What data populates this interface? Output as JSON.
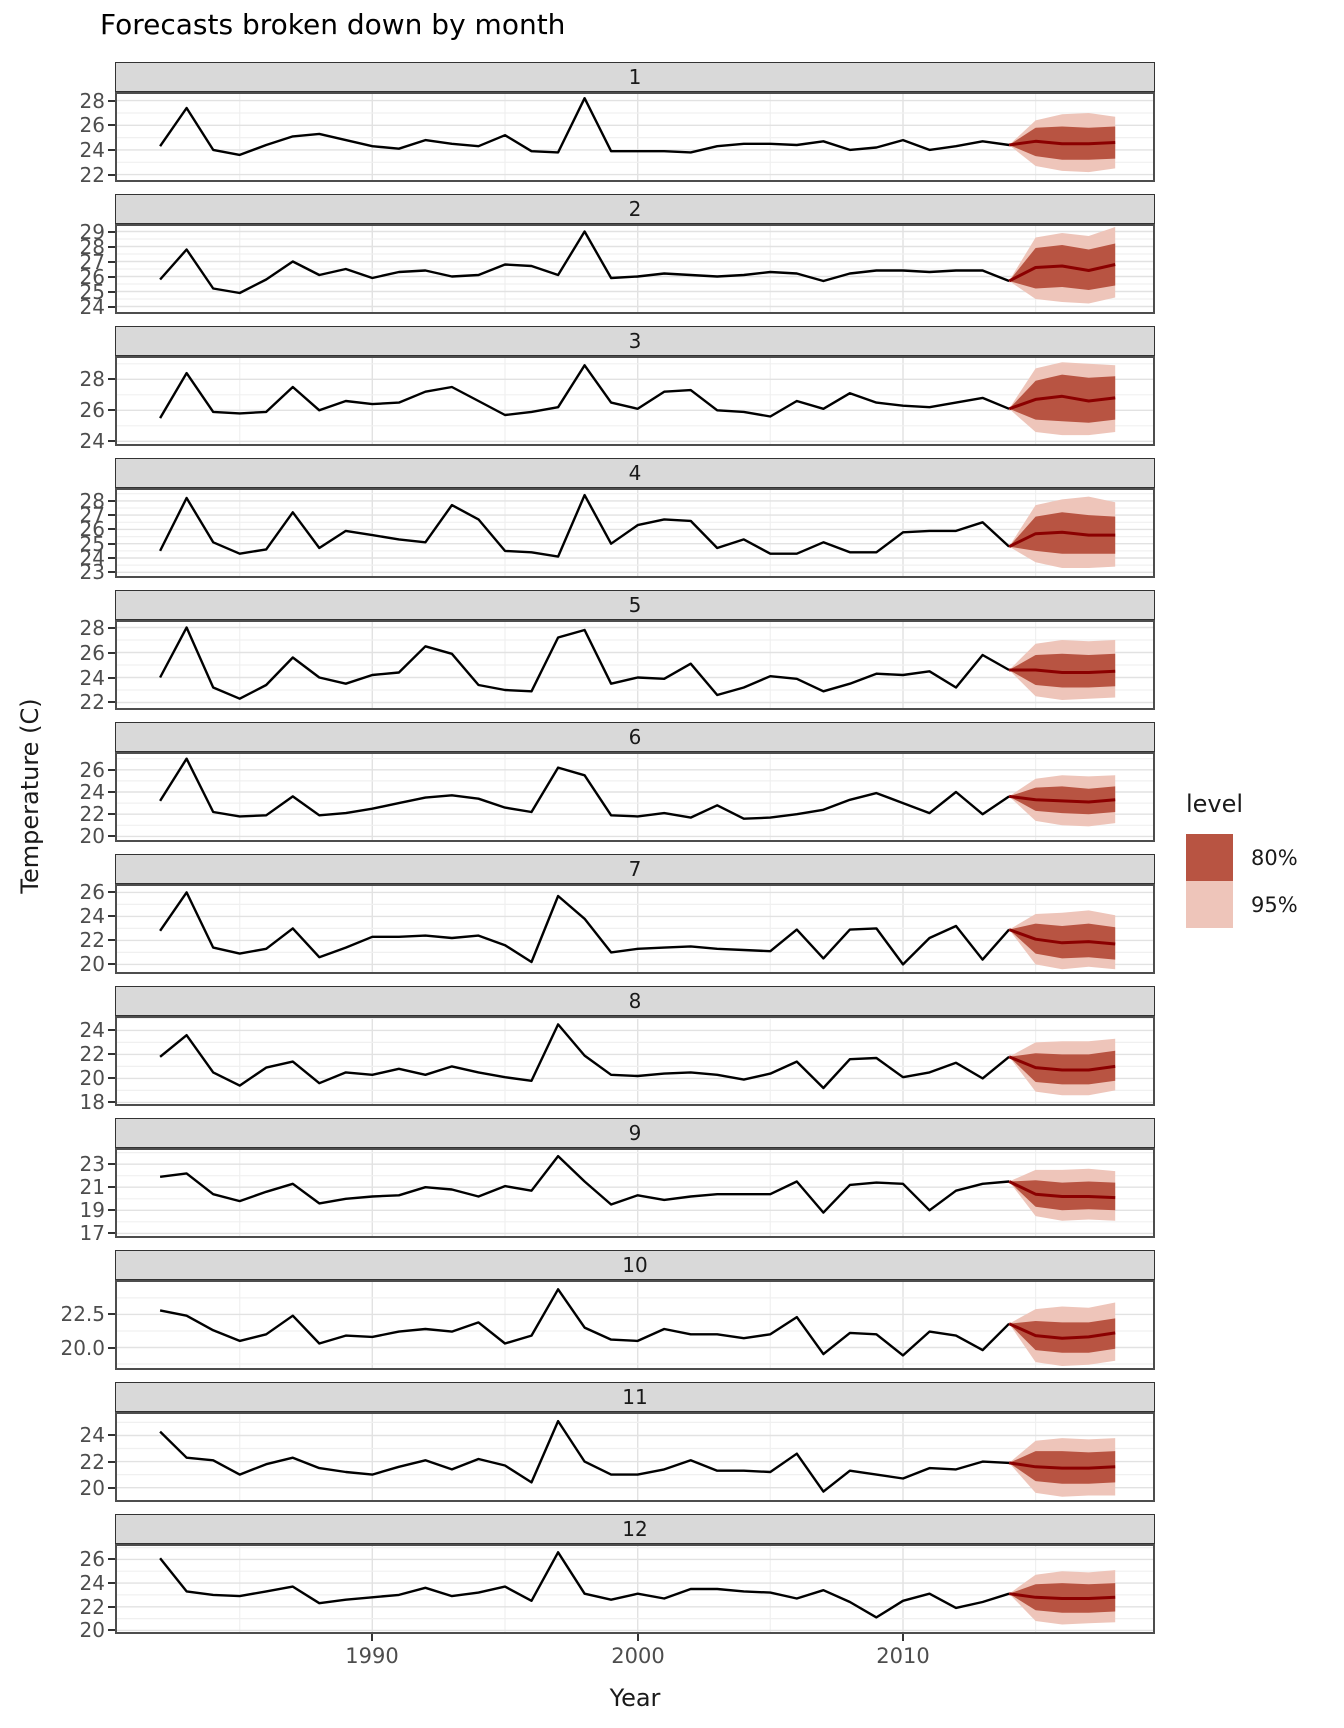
{
  "title": "Forecasts broken down by month",
  "axes": {
    "x_title": "Year",
    "y_title": "Temperature (C)",
    "x_major_ticks": [
      1990,
      2000,
      2010
    ],
    "x_major_labels": [
      "1990",
      "2000",
      "2010"
    ],
    "x_minor_ticks": [
      1985,
      1995,
      2005,
      2015
    ]
  },
  "legend": {
    "title": "level",
    "entries": [
      {
        "label": "80%",
        "color": "#b85442"
      },
      {
        "label": "95%",
        "color": "#eec5ba"
      }
    ]
  },
  "style": {
    "history_color": "#000000",
    "forecast_mean_color": "#8b0000",
    "level_80_color": "#b85442",
    "level_95_color": "#eec5ba",
    "grid_major": "#e2e2e2",
    "grid_minor": "#f0f0f0",
    "panel_border": "#4d4d4d",
    "strip_bg": "#d9d9d9"
  },
  "chart_data": {
    "type": "line",
    "title": "Forecasts broken down by month",
    "xlabel": "Year",
    "ylabel": "Temperature (C)",
    "x_range": [
      1980.3,
      2019.5
    ],
    "x_years": [
      1982,
      1983,
      1984,
      1985,
      1986,
      1987,
      1988,
      1989,
      1990,
      1991,
      1992,
      1993,
      1994,
      1995,
      1996,
      1997,
      1998,
      1999,
      2000,
      2001,
      2002,
      2003,
      2004,
      2005,
      2006,
      2007,
      2008,
      2009,
      2010,
      2011,
      2012,
      2013,
      2014
    ],
    "forecast_years": [
      2014,
      2015,
      2016,
      2017,
      2018
    ],
    "panels": [
      {
        "label": "1",
        "y_tick_values": [
          22,
          24,
          26,
          28
        ],
        "y_tick_labels": [
          "22",
          "24",
          "26",
          "28"
        ],
        "y_range": [
          21.4,
          28.7
        ],
        "history": [
          24.3,
          27.4,
          24.0,
          23.6,
          24.4,
          25.1,
          25.3,
          24.8,
          24.3,
          24.1,
          24.8,
          24.5,
          24.3,
          25.2,
          23.9,
          23.8,
          28.2,
          23.9,
          23.9,
          23.9,
          23.8,
          24.3,
          24.5,
          24.5,
          24.4,
          24.7,
          24.0,
          24.2,
          24.8,
          24.0,
          24.3,
          24.7,
          24.4
        ],
        "forecast": {
          "mean": [
            24.4,
            24.7,
            24.5,
            24.5,
            24.6
          ],
          "lo80": [
            24.4,
            23.5,
            23.2,
            23.2,
            23.3
          ],
          "hi80": [
            24.4,
            25.8,
            25.9,
            25.8,
            25.9
          ],
          "lo95": [
            24.4,
            22.7,
            22.3,
            22.2,
            22.5
          ],
          "hi95": [
            24.4,
            26.4,
            26.9,
            27.0,
            26.7
          ]
        }
      },
      {
        "label": "2",
        "y_tick_values": [
          24,
          25,
          26,
          27,
          28,
          29
        ],
        "y_tick_labels": [
          "24",
          "25",
          "26",
          "27",
          "28",
          "29"
        ],
        "y_range": [
          23.5,
          29.5
        ],
        "history": [
          25.8,
          27.8,
          25.2,
          24.9,
          25.8,
          27.0,
          26.1,
          26.5,
          25.9,
          26.3,
          26.4,
          26.0,
          26.1,
          26.8,
          26.7,
          26.1,
          29.0,
          25.9,
          26.0,
          26.2,
          26.1,
          26.0,
          26.1,
          26.3,
          26.2,
          25.7,
          26.2,
          26.4,
          26.4,
          26.3,
          26.4,
          26.4,
          25.7
        ],
        "forecast": {
          "mean": [
            25.7,
            26.6,
            26.7,
            26.4,
            26.8
          ],
          "lo80": [
            25.7,
            25.2,
            25.3,
            25.1,
            25.4
          ],
          "hi80": [
            25.7,
            27.9,
            28.1,
            27.8,
            28.2
          ],
          "lo95": [
            25.7,
            24.5,
            24.3,
            24.2,
            24.6
          ],
          "hi95": [
            25.7,
            28.6,
            28.9,
            28.7,
            29.3
          ]
        }
      },
      {
        "label": "3",
        "y_tick_values": [
          24,
          26,
          28
        ],
        "y_tick_labels": [
          "24",
          "26",
          "28"
        ],
        "y_range": [
          23.7,
          29.5
        ],
        "history": [
          25.5,
          28.4,
          25.9,
          25.8,
          25.9,
          27.5,
          26.0,
          26.6,
          26.4,
          26.5,
          27.2,
          27.5,
          26.6,
          25.7,
          25.9,
          26.2,
          28.9,
          26.5,
          26.1,
          27.2,
          27.3,
          26.0,
          25.9,
          25.6,
          26.6,
          26.1,
          27.1,
          26.5,
          26.3,
          26.2,
          26.5,
          26.8,
          26.1
        ],
        "forecast": {
          "mean": [
            26.1,
            26.7,
            26.9,
            26.6,
            26.8
          ],
          "lo80": [
            26.1,
            25.4,
            25.3,
            25.2,
            25.4
          ],
          "hi80": [
            26.1,
            27.9,
            28.3,
            28.1,
            28.2
          ],
          "lo95": [
            26.1,
            24.6,
            24.4,
            24.4,
            24.6
          ],
          "hi95": [
            26.1,
            28.7,
            29.1,
            29.0,
            28.9
          ]
        }
      },
      {
        "label": "4",
        "y_tick_values": [
          23,
          24,
          25,
          26,
          27,
          28
        ],
        "y_tick_labels": [
          "23",
          "24",
          "25",
          "26",
          "27",
          "28"
        ],
        "y_range": [
          22.6,
          28.9
        ],
        "history": [
          24.5,
          28.2,
          25.1,
          24.3,
          24.6,
          27.2,
          24.7,
          25.9,
          25.6,
          25.3,
          25.1,
          27.7,
          26.7,
          24.5,
          24.4,
          24.1,
          28.4,
          25.0,
          26.3,
          26.7,
          26.6,
          24.7,
          25.3,
          24.3,
          24.3,
          25.1,
          24.4,
          24.4,
          25.8,
          25.9,
          25.9,
          26.5,
          24.8
        ],
        "forecast": {
          "mean": [
            24.8,
            25.7,
            25.8,
            25.6,
            25.6
          ],
          "lo80": [
            24.8,
            24.5,
            24.3,
            24.3,
            24.3
          ],
          "hi80": [
            24.8,
            26.9,
            27.2,
            27.0,
            26.9
          ],
          "lo95": [
            24.8,
            23.7,
            23.3,
            23.3,
            23.4
          ],
          "hi95": [
            24.8,
            27.7,
            28.1,
            28.3,
            27.9
          ]
        }
      },
      {
        "label": "5",
        "y_tick_values": [
          22,
          24,
          26,
          28
        ],
        "y_tick_labels": [
          "22",
          "24",
          "26",
          "28"
        ],
        "y_range": [
          21.4,
          28.6
        ],
        "history": [
          24.0,
          28.0,
          23.2,
          22.3,
          23.4,
          25.6,
          24.0,
          23.5,
          24.2,
          24.4,
          26.5,
          25.9,
          23.4,
          23.0,
          22.9,
          27.2,
          27.8,
          23.5,
          24.0,
          23.9,
          25.1,
          22.6,
          23.2,
          24.1,
          23.9,
          22.9,
          23.5,
          24.3,
          24.2,
          24.5,
          23.2,
          25.8,
          24.6
        ],
        "forecast": {
          "mean": [
            24.6,
            24.6,
            24.4,
            24.4,
            24.5
          ],
          "lo80": [
            24.6,
            23.4,
            23.2,
            23.2,
            23.3
          ],
          "hi80": [
            24.6,
            25.8,
            25.9,
            25.8,
            25.9
          ],
          "lo95": [
            24.6,
            22.5,
            22.2,
            22.3,
            22.4
          ],
          "hi95": [
            24.6,
            26.7,
            27.0,
            26.9,
            27.0
          ]
        }
      },
      {
        "label": "6",
        "y_tick_values": [
          20,
          22,
          24,
          26
        ],
        "y_tick_labels": [
          "20",
          "22",
          "24",
          "26"
        ],
        "y_range": [
          19.5,
          27.6
        ],
        "history": [
          23.2,
          27.0,
          22.2,
          21.8,
          21.9,
          23.6,
          21.9,
          22.1,
          22.5,
          23.0,
          23.5,
          23.7,
          23.4,
          22.6,
          22.2,
          26.2,
          25.5,
          21.9,
          21.8,
          22.1,
          21.7,
          22.8,
          21.6,
          21.7,
          22.0,
          22.4,
          23.3,
          23.9,
          23.0,
          22.1,
          24.0,
          22.0,
          23.6
        ],
        "forecast": {
          "mean": [
            23.6,
            23.3,
            23.2,
            23.1,
            23.3
          ],
          "lo80": [
            23.6,
            22.3,
            22.1,
            22.0,
            22.2
          ],
          "hi80": [
            23.6,
            24.4,
            24.5,
            24.3,
            24.5
          ],
          "lo95": [
            23.6,
            21.4,
            21.0,
            20.9,
            21.2
          ],
          "hi95": [
            23.6,
            25.2,
            25.5,
            25.4,
            25.5
          ]
        }
      },
      {
        "label": "7",
        "y_tick_values": [
          20,
          22,
          24,
          26
        ],
        "y_tick_labels": [
          "20",
          "22",
          "24",
          "26"
        ],
        "y_range": [
          19.2,
          26.7
        ],
        "history": [
          22.8,
          26.0,
          21.4,
          20.9,
          21.3,
          23.0,
          20.6,
          21.4,
          22.3,
          22.3,
          22.4,
          22.2,
          22.4,
          21.6,
          20.2,
          25.7,
          23.8,
          21.0,
          21.3,
          21.4,
          21.5,
          21.3,
          21.2,
          21.1,
          22.9,
          20.5,
          22.9,
          23.0,
          20.0,
          22.2,
          23.2,
          20.4,
          22.9
        ],
        "forecast": {
          "mean": [
            22.9,
            22.1,
            21.8,
            21.9,
            21.7
          ],
          "lo80": [
            22.9,
            20.9,
            20.5,
            20.6,
            20.4
          ],
          "hi80": [
            22.9,
            23.4,
            23.2,
            23.4,
            23.1
          ],
          "lo95": [
            22.9,
            20.0,
            19.6,
            19.8,
            19.6
          ],
          "hi95": [
            22.9,
            24.2,
            24.3,
            24.5,
            24.1
          ]
        }
      },
      {
        "label": "8",
        "y_tick_values": [
          18,
          20,
          22,
          24
        ],
        "y_tick_labels": [
          "18",
          "20",
          "22",
          "24"
        ],
        "y_range": [
          17.7,
          25.2
        ],
        "history": [
          21.8,
          23.6,
          20.5,
          19.4,
          20.9,
          21.4,
          19.6,
          20.5,
          20.3,
          20.8,
          20.3,
          21.0,
          20.5,
          20.1,
          19.8,
          24.5,
          21.9,
          20.3,
          20.2,
          20.4,
          20.5,
          20.3,
          19.9,
          20.4,
          21.4,
          19.2,
          21.6,
          21.7,
          20.1,
          20.5,
          21.3,
          20.0,
          21.8
        ],
        "forecast": {
          "mean": [
            21.8,
            20.9,
            20.7,
            20.7,
            21.0
          ],
          "lo80": [
            21.8,
            19.7,
            19.5,
            19.5,
            19.8
          ],
          "hi80": [
            21.8,
            22.1,
            22.0,
            22.0,
            22.3
          ],
          "lo95": [
            21.8,
            18.9,
            18.6,
            18.6,
            19.0
          ],
          "hi95": [
            21.8,
            23.0,
            23.1,
            23.1,
            23.3
          ]
        }
      },
      {
        "label": "9",
        "y_tick_values": [
          17,
          19,
          21,
          23
        ],
        "y_tick_labels": [
          "17",
          "19",
          "21",
          "23"
        ],
        "y_range": [
          16.6,
          24.4
        ],
        "history": [
          21.9,
          22.2,
          20.4,
          19.8,
          20.6,
          21.3,
          19.6,
          20.0,
          20.2,
          20.3,
          21.0,
          20.8,
          20.2,
          21.1,
          20.7,
          23.7,
          21.5,
          19.5,
          20.3,
          19.9,
          20.2,
          20.4,
          20.4,
          20.4,
          21.5,
          18.8,
          21.2,
          21.4,
          21.3,
          19.0,
          20.7,
          21.3,
          21.5
        ],
        "forecast": {
          "mean": [
            21.5,
            20.4,
            20.2,
            20.2,
            20.1
          ],
          "lo80": [
            21.5,
            19.3,
            19.0,
            19.1,
            19.0
          ],
          "hi80": [
            21.5,
            21.6,
            21.4,
            21.5,
            21.4
          ],
          "lo95": [
            21.5,
            18.5,
            18.1,
            18.2,
            18.1
          ],
          "hi95": [
            21.5,
            22.5,
            22.5,
            22.6,
            22.4
          ]
        }
      },
      {
        "label": "10",
        "y_tick_values": [
          20.0,
          22.5
        ],
        "y_tick_labels": [
          "20.0",
          "22.5"
        ],
        "y_range": [
          18.3,
          25.1
        ],
        "history": [
          22.8,
          22.4,
          21.3,
          20.5,
          21.0,
          22.4,
          20.3,
          20.9,
          20.8,
          21.2,
          21.4,
          21.2,
          21.9,
          20.3,
          20.9,
          24.4,
          21.5,
          20.6,
          20.5,
          21.4,
          21.0,
          21.0,
          20.7,
          21.0,
          22.3,
          19.5,
          21.1,
          21.0,
          19.4,
          21.2,
          20.9,
          19.8,
          21.8
        ],
        "forecast": {
          "mean": [
            21.8,
            20.9,
            20.7,
            20.8,
            21.1
          ],
          "lo80": [
            21.8,
            19.8,
            19.6,
            19.6,
            19.9
          ],
          "hi80": [
            21.8,
            22.0,
            21.9,
            21.9,
            22.2
          ],
          "lo95": [
            21.8,
            18.9,
            18.6,
            18.7,
            19.0
          ],
          "hi95": [
            21.8,
            22.9,
            23.1,
            23.0,
            23.4
          ]
        }
      },
      {
        "label": "11",
        "y_tick_values": [
          20,
          22,
          24
        ],
        "y_tick_labels": [
          "20",
          "22",
          "24"
        ],
        "y_range": [
          18.9,
          25.8
        ],
        "history": [
          24.3,
          22.3,
          22.1,
          21.0,
          21.8,
          22.3,
          21.5,
          21.2,
          21.0,
          21.6,
          22.1,
          21.4,
          22.2,
          21.7,
          20.4,
          25.1,
          22.0,
          21.0,
          21.0,
          21.4,
          22.1,
          21.3,
          21.3,
          21.2,
          22.6,
          19.7,
          21.3,
          21.0,
          20.7,
          21.5,
          21.4,
          22.0,
          21.9
        ],
        "forecast": {
          "mean": [
            21.9,
            21.6,
            21.5,
            21.5,
            21.6
          ],
          "lo80": [
            21.9,
            20.5,
            20.3,
            20.3,
            20.4
          ],
          "hi80": [
            21.9,
            22.8,
            22.8,
            22.7,
            22.8
          ],
          "lo95": [
            21.9,
            19.6,
            19.3,
            19.4,
            19.4
          ],
          "hi95": [
            21.9,
            23.6,
            23.8,
            23.7,
            23.8
          ]
        }
      },
      {
        "label": "12",
        "y_tick_values": [
          20,
          22,
          24,
          26
        ],
        "y_tick_labels": [
          "20",
          "22",
          "24",
          "26"
        ],
        "y_range": [
          19.7,
          27.3
        ],
        "history": [
          26.1,
          23.3,
          23.0,
          22.9,
          23.3,
          23.7,
          22.3,
          22.6,
          22.8,
          23.0,
          23.6,
          22.9,
          23.2,
          23.7,
          22.5,
          26.6,
          23.1,
          22.6,
          23.1,
          22.7,
          23.5,
          23.5,
          23.3,
          23.2,
          22.7,
          23.4,
          22.4,
          21.1,
          22.5,
          23.1,
          21.9,
          22.4,
          23.1
        ],
        "forecast": {
          "mean": [
            23.1,
            22.8,
            22.7,
            22.7,
            22.8
          ],
          "lo80": [
            23.1,
            21.7,
            21.5,
            21.5,
            21.6
          ],
          "hi80": [
            23.1,
            23.9,
            24.0,
            23.9,
            24.0
          ],
          "lo95": [
            23.1,
            20.8,
            20.5,
            20.6,
            20.7
          ],
          "hi95": [
            23.1,
            24.7,
            25.0,
            24.9,
            25.1
          ]
        }
      }
    ]
  }
}
